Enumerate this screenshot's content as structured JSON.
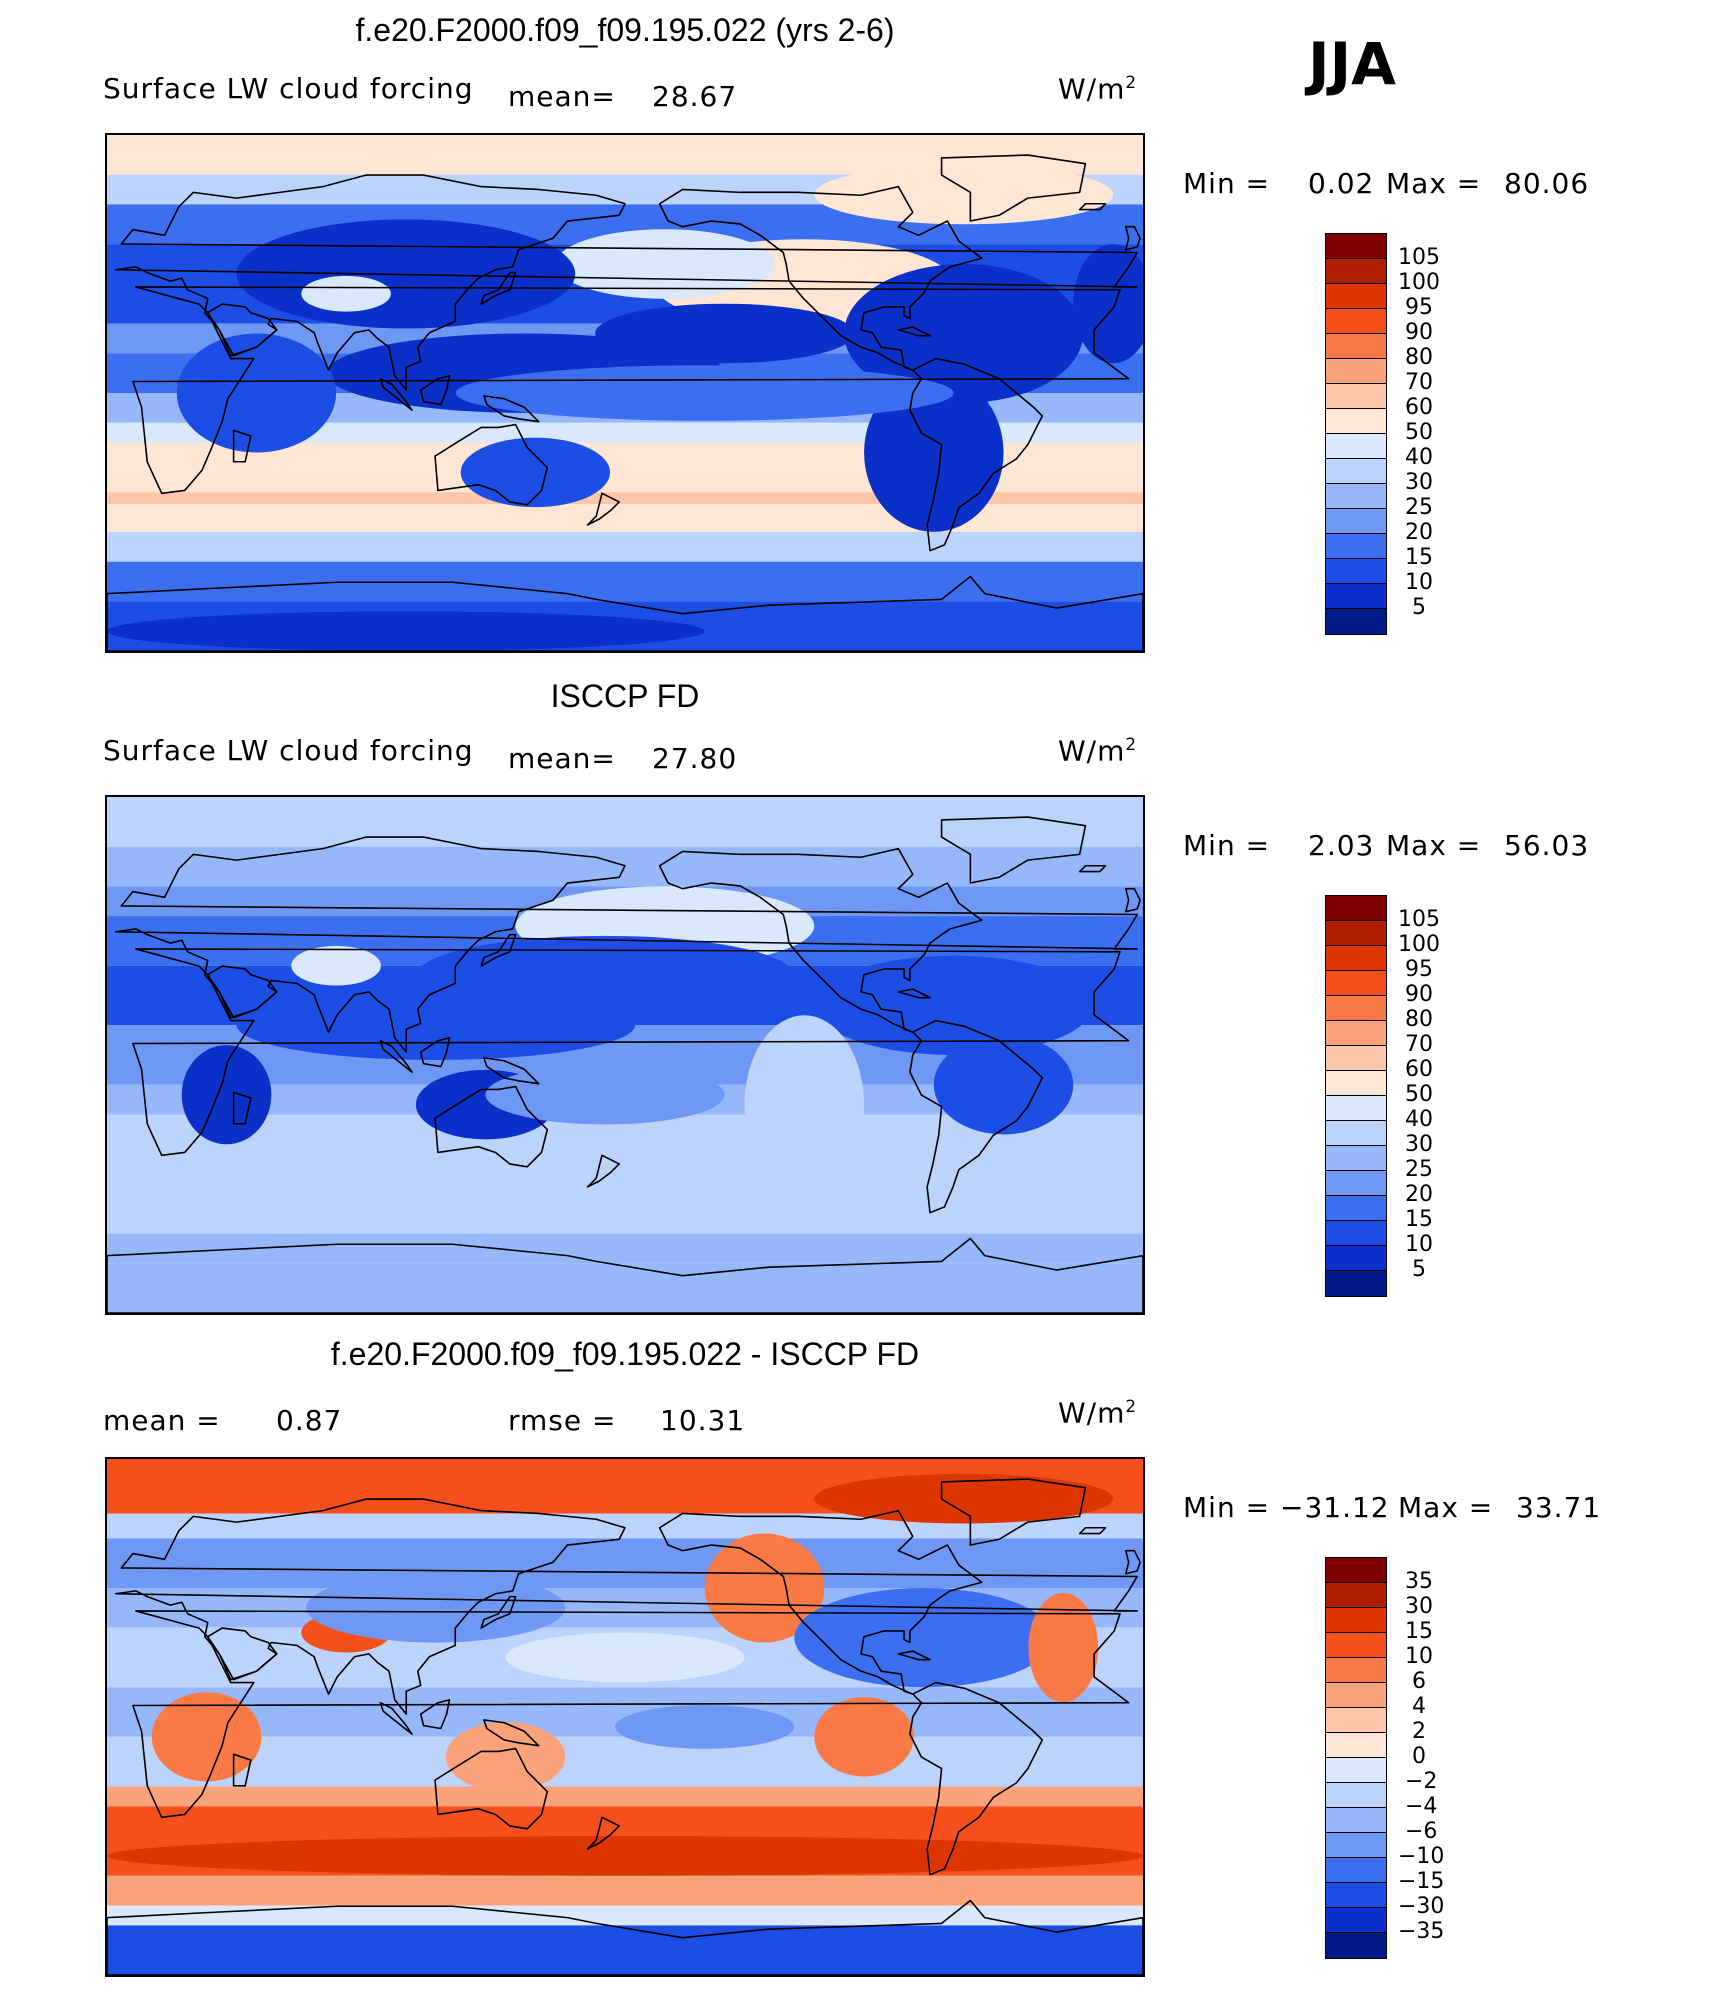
{
  "season": "JJA",
  "units_base": "W/m",
  "units_exp": "2",
  "panels": [
    {
      "title": "f.e20.F2000.f09_f09.195.022 (yrs 2-6)",
      "variable": "Surface LW cloud forcing",
      "mean_label": "mean=",
      "mean_value": "28.67",
      "min_label": "Min =",
      "min_value": "0.02",
      "max_label": "Max =",
      "max_value": "80.06",
      "levels": [
        "105",
        "100",
        "95",
        "90",
        "80",
        "70",
        "60",
        "50",
        "40",
        "30",
        "25",
        "20",
        "15",
        "10",
        "5"
      ],
      "style": "model"
    },
    {
      "title": "ISCCP FD",
      "variable": "Surface LW cloud forcing",
      "mean_label": "mean=",
      "mean_value": "27.80",
      "min_label": "Min =",
      "min_value": "2.03",
      "max_label": "Max =",
      "max_value": "56.03",
      "levels": [
        "105",
        "100",
        "95",
        "90",
        "80",
        "70",
        "60",
        "50",
        "40",
        "30",
        "25",
        "20",
        "15",
        "10",
        "5"
      ],
      "style": "obs"
    },
    {
      "title": "f.e20.F2000.f09_f09.195.022 - ISCCP FD",
      "mean_label": "mean =",
      "mean_value": "0.87",
      "rmse_label": "rmse =",
      "rmse_value": "10.31",
      "min_label": "Min =",
      "min_value": "−31.12",
      "max_label": "Max =",
      "max_value": "33.71",
      "levels": [
        "35",
        "30",
        "15",
        "10",
        "6",
        "4",
        "2",
        "0",
        "−2",
        "−4",
        "−6",
        "−10",
        "−15",
        "−30",
        "−35"
      ],
      "style": "diff"
    }
  ],
  "colors": {
    "scale": [
      "#7f0000",
      "#b01e00",
      "#dc3500",
      "#f5501c",
      "#fa7a45",
      "#fca27a",
      "#fdc6a8",
      "#fde6d4",
      "#d9e8fb",
      "#bcd3fb",
      "#96b8fa",
      "#6f98f4",
      "#3c6ff0",
      "#1c4ee6",
      "#0a30c9",
      "#001a8a"
    ]
  }
}
